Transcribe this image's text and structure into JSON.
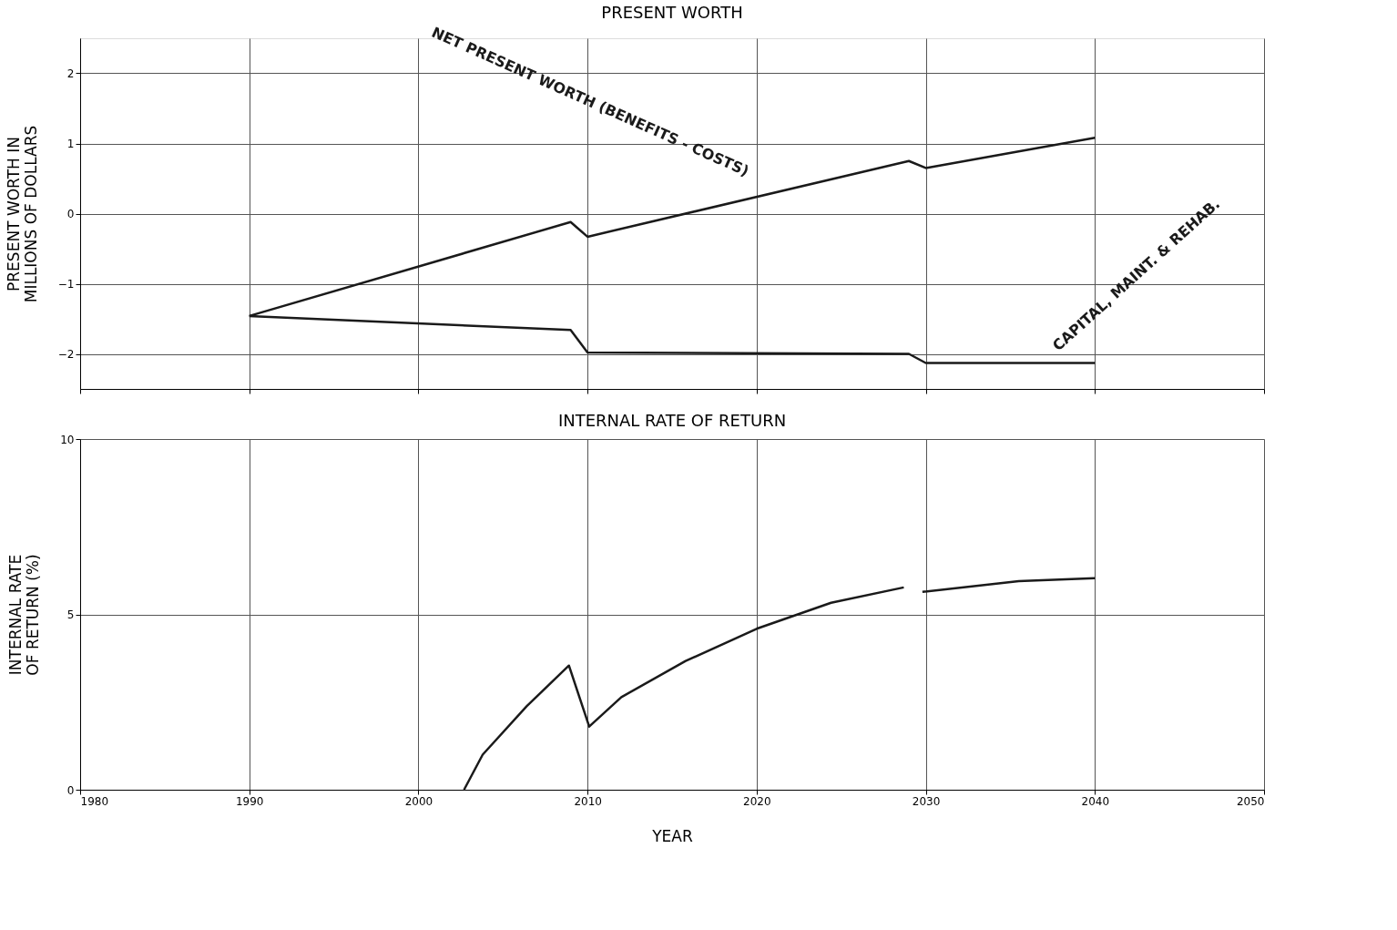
{
  "chart_data": [
    {
      "type": "line",
      "title": "PRESENT WORTH",
      "ylabel": "PRESENT WORTH IN MILLIONS OF DOLLARS",
      "xlim": [
        1980,
        2050
      ],
      "xticks": [
        1980,
        1990,
        2000,
        2010,
        2020,
        2030,
        2040,
        2050
      ],
      "ylim": [
        -2.5,
        2.5
      ],
      "yticks": [
        -2,
        -1,
        0,
        1,
        2
      ],
      "tick_labels": "y",
      "grid": true,
      "line_style": "solid",
      "series": [
        {
          "name": "NET PRESENT WORTH (BENEFITS - COSTS)",
          "color": "#1a1a1a",
          "x": [
            1990,
            2009,
            2010,
            2029,
            2030,
            2040
          ],
          "values": [
            -1.46,
            -0.12,
            -0.33,
            0.75,
            0.65,
            1.08
          ]
        },
        {
          "name": "CAPITAL, MAINT. & REHAB.",
          "color": "#1a1a1a",
          "x": [
            1990,
            2009,
            2010,
            2029,
            2030,
            2040
          ],
          "values": [
            -1.46,
            -1.66,
            -1.98,
            -2.0,
            -2.13,
            -2.13
          ]
        }
      ]
    },
    {
      "type": "line",
      "title": "INTERNAL RATE OF RETURN",
      "xlabel": "YEAR",
      "ylabel": "INTERNAL RATE OF RETURN (%)",
      "xlim": [
        1980,
        2050
      ],
      "xticks": [
        1980,
        1990,
        2000,
        2010,
        2020,
        2030,
        2040,
        2050
      ],
      "ylim": [
        0,
        10
      ],
      "yticks": [
        0,
        5,
        10
      ],
      "grid": true,
      "line_style": "solid",
      "series": [
        {
          "color": "#1a1a1a",
          "x": [
            2002.7,
            2003.8,
            2006.4,
            2008.9,
            2010.1,
            2012,
            2015.8,
            2020,
            2024.4,
            2028.7,
            2029.2,
            2029.8,
            2035.5,
            2040
          ],
          "values": [
            0,
            1.0,
            2.38,
            3.54,
            1.8,
            2.64,
            3.67,
            4.59,
            5.33,
            5.77,
            null,
            5.64,
            5.95,
            6.03
          ]
        }
      ]
    }
  ]
}
